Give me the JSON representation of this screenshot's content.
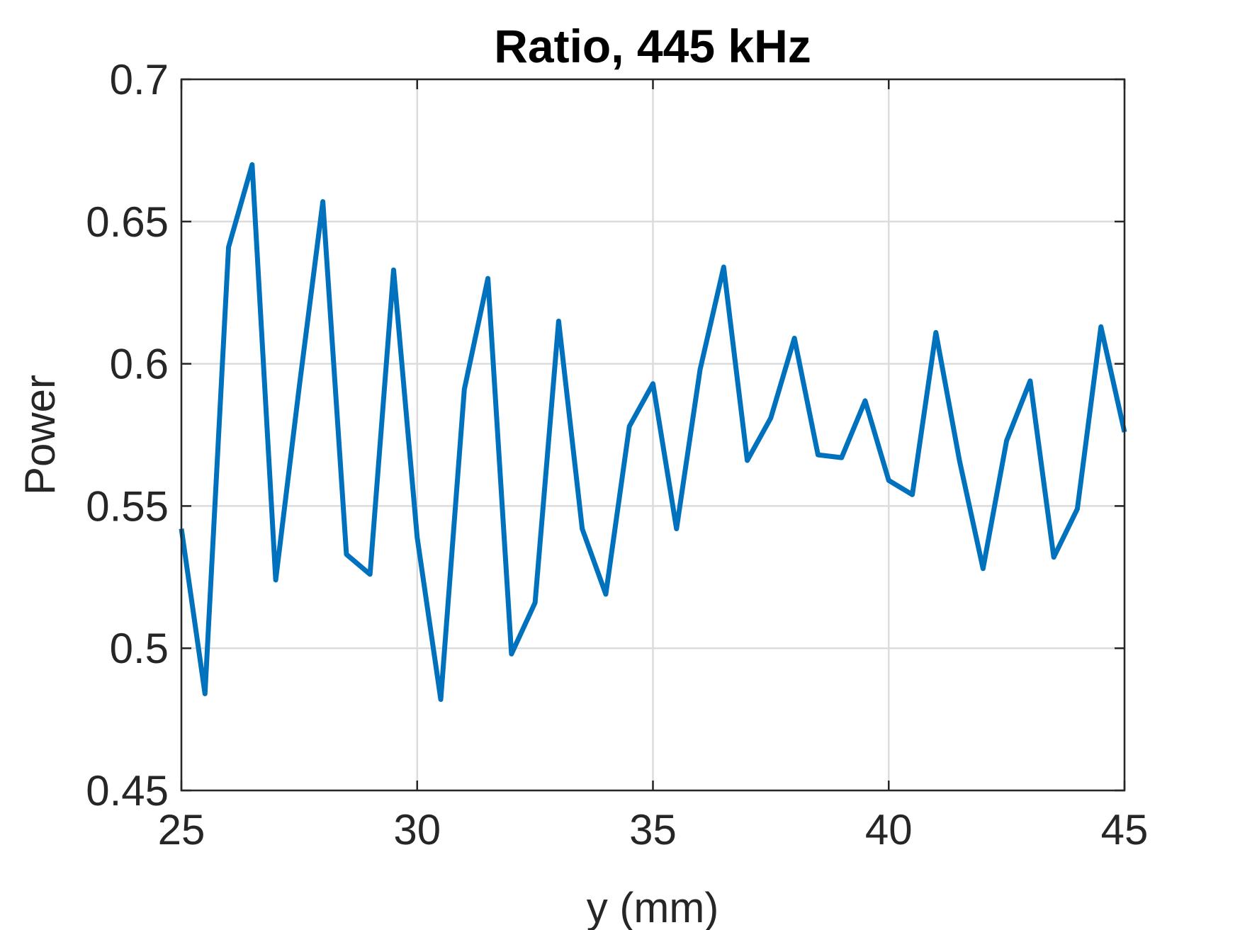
{
  "chart_data": {
    "type": "line",
    "title": "Ratio, 445 kHz",
    "xlabel": "y (mm)",
    "ylabel": "Power",
    "xlim": [
      25,
      45
    ],
    "ylim": [
      0.45,
      0.7
    ],
    "xticks": [
      25,
      30,
      35,
      40,
      45
    ],
    "xtick_labels": [
      "25",
      "30",
      "35",
      "40",
      "45"
    ],
    "yticks": [
      0.45,
      0.5,
      0.55,
      0.6,
      0.65,
      0.7
    ],
    "ytick_labels": [
      "0.45",
      "0.5",
      "0.55",
      "0.6",
      "0.65",
      "0.7"
    ],
    "grid": true,
    "series": [
      {
        "color": "#0072BD",
        "x": [
          25,
          25.5,
          26,
          26.5,
          27,
          27.5,
          28,
          28.5,
          29,
          29.5,
          30,
          30.5,
          31,
          31.5,
          32,
          32.5,
          33,
          33.5,
          34,
          34.5,
          35,
          35.5,
          36,
          36.5,
          37,
          37.5,
          38,
          38.5,
          39,
          39.5,
          40,
          40.5,
          41,
          41.5,
          42,
          42.5,
          43,
          43.5,
          44,
          44.5,
          45
        ],
        "y": [
          0.542,
          0.484,
          0.641,
          0.67,
          0.524,
          0.592,
          0.657,
          0.533,
          0.526,
          0.633,
          0.539,
          0.482,
          0.591,
          0.63,
          0.498,
          0.516,
          0.615,
          0.542,
          0.519,
          0.578,
          0.593,
          0.542,
          0.598,
          0.634,
          0.566,
          0.581,
          0.609,
          0.568,
          0.567,
          0.587,
          0.559,
          0.554,
          0.611,
          0.566,
          0.528,
          0.573,
          0.594,
          0.532,
          0.549,
          0.613,
          0.576
        ]
      }
    ]
  }
}
